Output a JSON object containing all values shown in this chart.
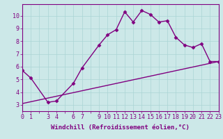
{
  "xlabel": "Windchill (Refroidissement éolien,°C)",
  "background_color": "#cce8e8",
  "line_color": "#800080",
  "x_ticks": [
    0,
    1,
    3,
    4,
    6,
    7,
    9,
    10,
    11,
    12,
    13,
    14,
    15,
    16,
    17,
    18,
    19,
    20,
    21,
    22,
    23
  ],
  "series1_x": [
    0,
    1,
    3,
    4,
    6,
    7,
    9,
    10,
    11,
    12,
    13,
    14,
    15,
    16,
    17,
    18,
    19,
    20,
    21,
    22,
    23
  ],
  "series1_y": [
    5.7,
    5.1,
    3.2,
    3.3,
    4.7,
    5.9,
    7.7,
    8.5,
    8.9,
    10.3,
    9.5,
    10.4,
    10.1,
    9.5,
    9.6,
    8.3,
    7.7,
    7.5,
    7.8,
    6.4,
    6.4
  ],
  "series2_x": [
    0,
    23
  ],
  "series2_y": [
    3.1,
    6.4
  ],
  "ylim": [
    2.5,
    10.9
  ],
  "xlim": [
    0,
    23
  ],
  "yticks": [
    3,
    4,
    5,
    6,
    7,
    8,
    9,
    10
  ],
  "grid_color": "#aad4d4",
  "marker": "D",
  "marker_size": 2.5,
  "line_width": 1.0,
  "xlabel_fontsize": 6.5,
  "tick_fontsize": 6.0,
  "tick_color": "#800080",
  "label_color": "#800080"
}
